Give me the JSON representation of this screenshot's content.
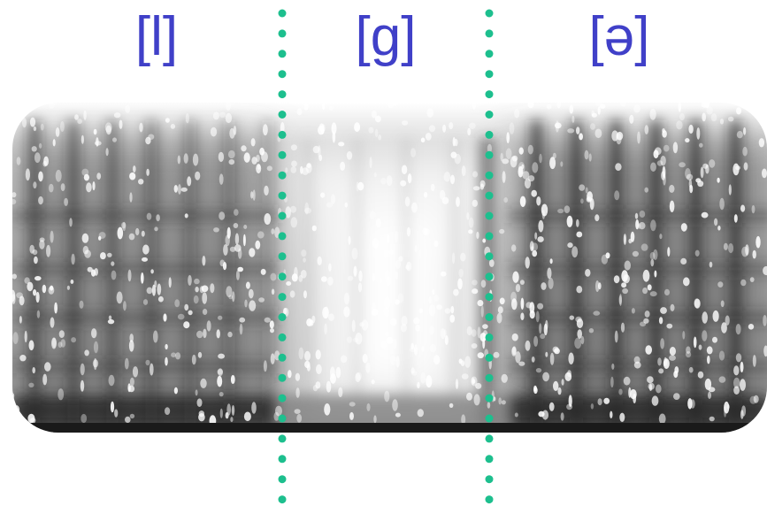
{
  "segments": [
    {
      "id": "l",
      "label": "[l]"
    },
    {
      "id": "g",
      "label": "[g]"
    },
    {
      "id": "schwa",
      "label": "[ə]"
    }
  ],
  "colors": {
    "label": "#4040c8",
    "divider": "#1dbf8e",
    "spectrogram_dark": "#1a1a1a",
    "spectrogram_light": "#ffffff"
  },
  "icons": {
    "spectrogram": "speech-spectrogram-image",
    "divider": "dotted-segment-boundary"
  }
}
